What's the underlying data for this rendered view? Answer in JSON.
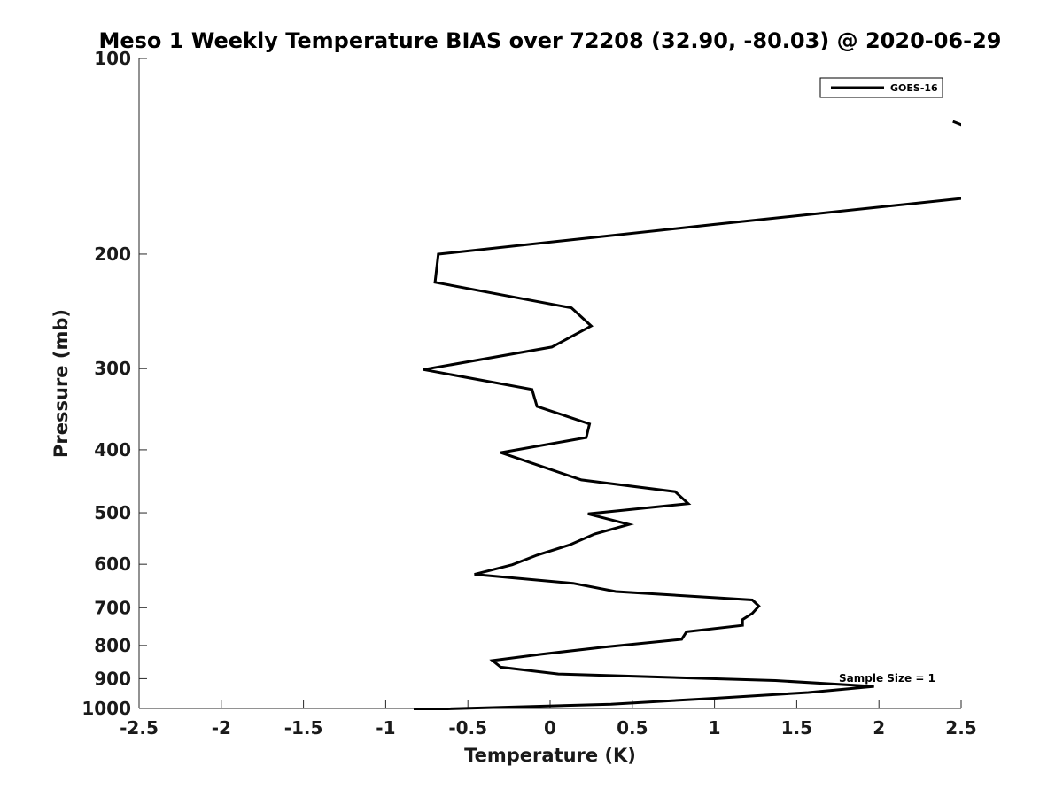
{
  "chart_data": {
    "type": "line",
    "title": "Meso 1 Weekly Temperature BIAS over 72208 (32.90, -80.03) @ 2020-06-29",
    "xlabel": "Temperature (K)",
    "ylabel": "Pressure (mb)",
    "xlim": [
      -2.5,
      2.5
    ],
    "ylim": [
      100,
      1000
    ],
    "y_scale": "log",
    "y_reversed": true,
    "xticks": [
      -2.5,
      -2,
      -1.5,
      -1,
      -0.5,
      0,
      0.5,
      1,
      1.5,
      2,
      2.5
    ],
    "xtick_labels": [
      "-2.5",
      "-2",
      "-1.5",
      "-1",
      "-0.5",
      "0",
      "0.5",
      "1",
      "1.5",
      "2",
      "2.5"
    ],
    "yticks": [
      100,
      200,
      300,
      400,
      500,
      600,
      700,
      800,
      900,
      1000
    ],
    "ytick_labels": [
      "100",
      "200",
      "300",
      "400",
      "500",
      "600",
      "700",
      "800",
      "900",
      "1000"
    ],
    "grid": false,
    "legend_position": "top-right",
    "series": [
      {
        "name": "GOES-16",
        "color": "#000000",
        "segments": [
          [
            [
              2.45,
              125
            ],
            [
              2.52,
              127
            ]
          ],
          [
            [
              2.52,
              164
            ],
            [
              1.0,
              180
            ],
            [
              -0.68,
              200
            ],
            [
              -0.7,
              221
            ],
            [
              0.13,
              242
            ],
            [
              0.25,
              258
            ],
            [
              0.01,
              278
            ],
            [
              -0.77,
              301
            ],
            [
              -0.11,
              323
            ],
            [
              -0.08,
              343
            ],
            [
              0.24,
              365
            ],
            [
              0.22,
              383
            ],
            [
              -0.3,
              404
            ],
            [
              -0.02,
              427
            ],
            [
              0.19,
              445
            ],
            [
              0.76,
              464
            ],
            [
              0.84,
              484
            ],
            [
              0.23,
              502
            ],
            [
              0.48,
              521
            ],
            [
              0.27,
              539
            ],
            [
              0.12,
              560
            ],
            [
              -0.08,
              581
            ],
            [
              -0.23,
              601
            ],
            [
              -0.46,
              622
            ],
            [
              0.14,
              642
            ],
            [
              0.4,
              661
            ],
            [
              1.23,
              681
            ],
            [
              1.27,
              696
            ],
            [
              1.23,
              714
            ],
            [
              1.17,
              730
            ],
            [
              1.17,
              745
            ],
            [
              0.83,
              762
            ],
            [
              0.8,
              783
            ],
            [
              0.32,
              805
            ],
            [
              -0.05,
              825
            ],
            [
              -0.35,
              844
            ],
            [
              -0.3,
              864
            ],
            [
              0.05,
              885
            ],
            [
              1.37,
              906
            ],
            [
              1.97,
              925
            ],
            [
              1.57,
              945
            ],
            [
              0.99,
              965
            ],
            [
              0.37,
              985
            ],
            [
              -0.83,
              1005
            ]
          ]
        ]
      }
    ],
    "annotations": [
      {
        "text": "Sample Size = 1",
        "x": 2.05,
        "y": 910
      }
    ]
  }
}
